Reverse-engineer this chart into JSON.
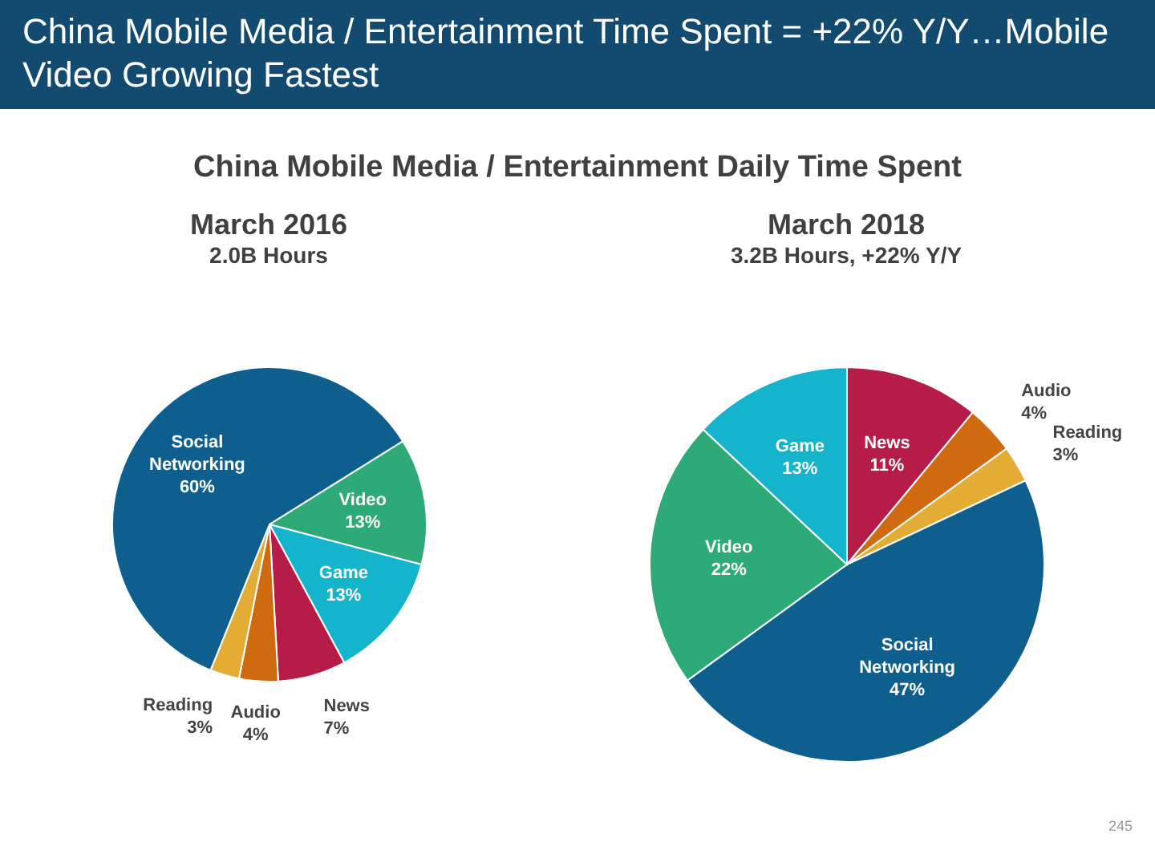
{
  "chart_data": [
    {
      "type": "pie",
      "title": "March 2016",
      "subtitle": "2.0B Hours",
      "annotations": [
        "China Mobile Media / Entertainment Time Spent = +22% Y/Y…Mobile Video Growing Fastest",
        "China Mobile Media / Entertainment Daily Time Spent",
        "245"
      ],
      "categories": [
        "Video",
        "Game",
        "News",
        "Audio",
        "Reading",
        "Social Networking"
      ],
      "values": [
        13,
        13,
        7,
        4,
        3,
        60
      ],
      "colors": [
        "#2eaa78",
        "#14b4cc",
        "#b51c48",
        "#cf6a10",
        "#e3ac35",
        "#0e5f8e"
      ],
      "value_labels": [
        "13%",
        "13%",
        "7%",
        "4%",
        "3%",
        "60%"
      ],
      "legend": false
    },
    {
      "type": "pie",
      "title": "March 2018",
      "subtitle": "3.2B Hours, +22% Y/Y",
      "categories": [
        "News",
        "Audio",
        "Reading",
        "Social Networking",
        "Video",
        "Game"
      ],
      "values": [
        11,
        4,
        3,
        47,
        22,
        13
      ],
      "colors": [
        "#b51c48",
        "#cf6a10",
        "#e3ac35",
        "#0e5f8e",
        "#2eaa78",
        "#14b4cc"
      ],
      "value_labels": [
        "11%",
        "4%",
        "3%",
        "47%",
        "22%",
        "13%"
      ],
      "legend": false
    }
  ]
}
